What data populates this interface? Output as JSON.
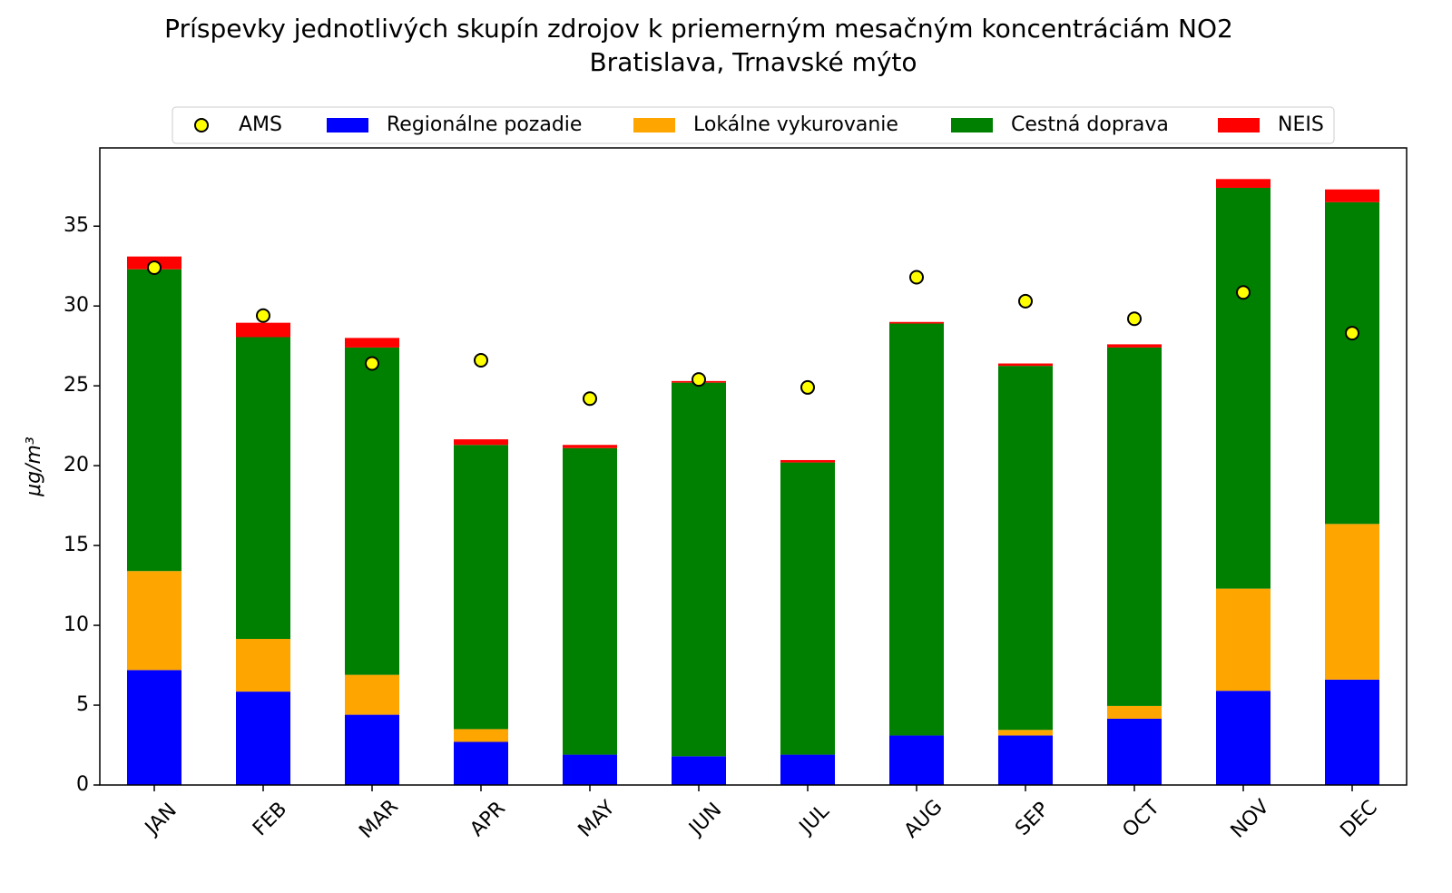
{
  "chart_data": {
    "type": "stacked_bar",
    "title": "Príspevky jednotlivých skupín zdrojov k priemerným mesačným koncentráciám NO2",
    "subtitle": "Bratislava, Trnavské mýto",
    "ylabel": "μg/m³",
    "categories": [
      "JAN",
      "FEB",
      "MAR",
      "APR",
      "MAY",
      "JUN",
      "JUL",
      "AUG",
      "SEP",
      "OCT",
      "NOV",
      "DEC"
    ],
    "series": [
      {
        "name": "Regionálne pozadie",
        "color": "#0000ff",
        "values": [
          7.2,
          5.85,
          4.4,
          2.7,
          1.9,
          1.8,
          1.9,
          3.1,
          3.1,
          4.15,
          5.9,
          6.6
        ]
      },
      {
        "name": "Lokálne vykurovanie",
        "color": "#ffa500",
        "values": [
          6.2,
          3.3,
          2.5,
          0.8,
          0,
          0,
          0,
          0,
          0.35,
          0.8,
          6.4,
          9.75
        ]
      },
      {
        "name": "Cestná doprava",
        "color": "#008000",
        "values": [
          18.9,
          18.9,
          20.5,
          17.8,
          19.2,
          23.4,
          18.3,
          25.8,
          22.8,
          22.45,
          25.1,
          20.15
        ]
      },
      {
        "name": "NEIS",
        "color": "#ff0000",
        "values": [
          0.8,
          0.9,
          0.6,
          0.35,
          0.2,
          0.1,
          0.15,
          0.1,
          0.15,
          0.2,
          0.55,
          0.8
        ]
      }
    ],
    "points": {
      "name": "AMS",
      "color": "#ffff00",
      "values": [
        32.4,
        29.4,
        26.4,
        26.6,
        24.2,
        25.4,
        24.9,
        31.8,
        30.3,
        29.2,
        30.85,
        28.3
      ]
    },
    "ylim": [
      0,
      39.9
    ],
    "yticks": [
      0,
      5,
      10,
      15,
      20,
      25,
      30,
      35
    ]
  }
}
